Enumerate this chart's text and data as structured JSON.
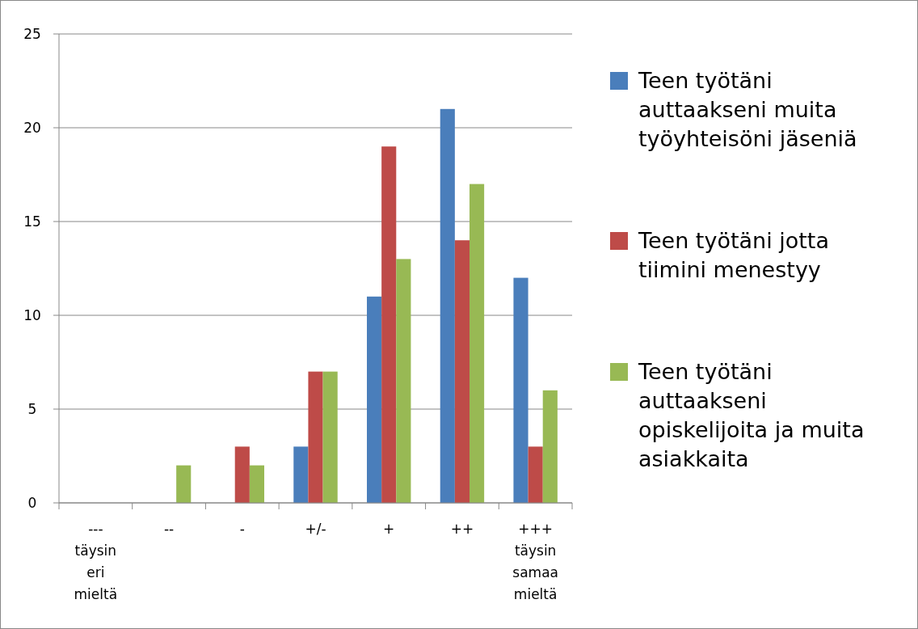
{
  "chart_data": {
    "type": "bar",
    "categories": [
      "---\ntäysin\neri\nmieltä",
      "--",
      "-",
      "+/-",
      "+",
      "++",
      "+++\ntäysin\nsamaa\nmieltä"
    ],
    "series": [
      {
        "name": "Teen työtäni auttaakseni muita työyhteisöni jäseniä",
        "color": "#4a7ebb",
        "values": [
          0,
          0,
          0,
          3,
          11,
          21,
          12
        ]
      },
      {
        "name": "Teen työtäni jotta tiimini menestyy",
        "color": "#be4b48",
        "values": [
          0,
          0,
          3,
          7,
          19,
          14,
          3
        ]
      },
      {
        "name": "Teen työtäni auttaakseni opiskelijoita ja muita asiakkaita",
        "color": "#98b954",
        "values": [
          0,
          2,
          2,
          7,
          13,
          17,
          6
        ]
      }
    ],
    "ylim": [
      0,
      25
    ],
    "yticks": [
      0,
      5,
      10,
      15,
      20,
      25
    ],
    "grid": "y",
    "legend": "right"
  }
}
